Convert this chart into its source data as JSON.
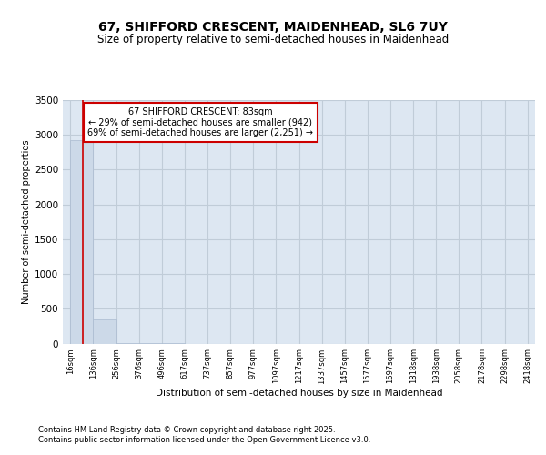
{
  "title_line1": "67, SHIFFORD CRESCENT, MAIDENHEAD, SL6 7UY",
  "title_line2": "Size of property relative to semi-detached houses in Maidenhead",
  "xlabel": "Distribution of semi-detached houses by size in Maidenhead",
  "ylabel": "Number of semi-detached properties",
  "bin_edges": [
    16,
    136,
    256,
    376,
    496,
    617,
    737,
    857,
    977,
    1097,
    1217,
    1337,
    1457,
    1577,
    1697,
    1818,
    1938,
    2058,
    2178,
    2298,
    2418
  ],
  "bar_heights": [
    2920,
    350,
    5,
    2,
    1,
    0,
    0,
    0,
    0,
    0,
    0,
    0,
    0,
    0,
    0,
    0,
    0,
    0,
    0,
    0
  ],
  "bar_color": "#ccd9e8",
  "bar_edgecolor": "#aabbd0",
  "property_size": 83,
  "property_label": "67 SHIFFORD CRESCENT: 83sqm",
  "annotation_line2": "← 29% of semi-detached houses are smaller (942)",
  "annotation_line3": "69% of semi-detached houses are larger (2,251) →",
  "vline_color": "#cc0000",
  "annotation_box_edgecolor": "#cc0000",
  "annotation_box_facecolor": "#ffffff",
  "ylim": [
    0,
    3500
  ],
  "yticks": [
    0,
    500,
    1000,
    1500,
    2000,
    2500,
    3000,
    3500
  ],
  "grid_color": "#c0ccd8",
  "background_color": "#dde7f2",
  "footer_line1": "Contains HM Land Registry data © Crown copyright and database right 2025.",
  "footer_line2": "Contains public sector information licensed under the Open Government Licence v3.0.",
  "title_fontsize": 10,
  "subtitle_fontsize": 8.5,
  "ylabel_fontsize": 7,
  "xlabel_fontsize": 7.5,
  "ytick_fontsize": 7.5,
  "xtick_fontsize": 6,
  "annotation_fontsize": 7,
  "footer_fontsize": 6
}
